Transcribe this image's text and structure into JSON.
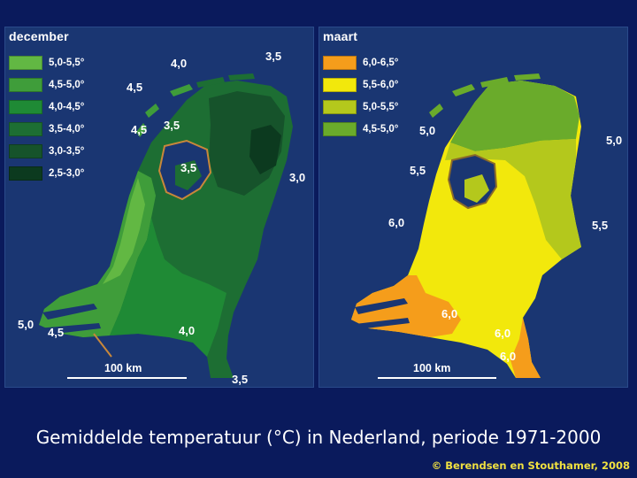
{
  "maps": {
    "december": {
      "title": "december",
      "legend": [
        {
          "label": "5,0-5,5°",
          "color": "#62b843"
        },
        {
          "label": "4,5-5,0°",
          "color": "#3f9d3a"
        },
        {
          "label": "4,0-4,5°",
          "color": "#1f8a35"
        },
        {
          "label": "3,5-4,0°",
          "color": "#1d6e33"
        },
        {
          "label": "3,0-3,5°",
          "color": "#16532b"
        },
        {
          "label": "2,5-3,0°",
          "color": "#0c3a1f"
        }
      ],
      "isotherm_labels": [
        "3,5",
        "4,0",
        "4,5",
        "4,5",
        "3,5",
        "3,5",
        "3,0",
        "5,0",
        "4,5",
        "4,0",
        "3,5"
      ],
      "scale_label": "100 km"
    },
    "maart": {
      "title": "maart",
      "legend": [
        {
          "label": "6,0-6,5°",
          "color": "#f59d1b"
        },
        {
          "label": "5,5-6,0°",
          "color": "#f2e80c"
        },
        {
          "label": "5,0-5,5°",
          "color": "#b4c81c"
        },
        {
          "label": "4,5-5,0°",
          "color": "#6aab2b"
        }
      ],
      "isotherm_labels": [
        "5,0",
        "5,0",
        "5,5",
        "6,0",
        "5,5",
        "6,0",
        "6,0",
        "6,0"
      ],
      "scale_label": "100 km"
    }
  },
  "caption": "Gemiddelde temperatuur (°C) in Nederland, periode 1971-2000",
  "credit": "© Berendsen en Stouthamer, 2008"
}
